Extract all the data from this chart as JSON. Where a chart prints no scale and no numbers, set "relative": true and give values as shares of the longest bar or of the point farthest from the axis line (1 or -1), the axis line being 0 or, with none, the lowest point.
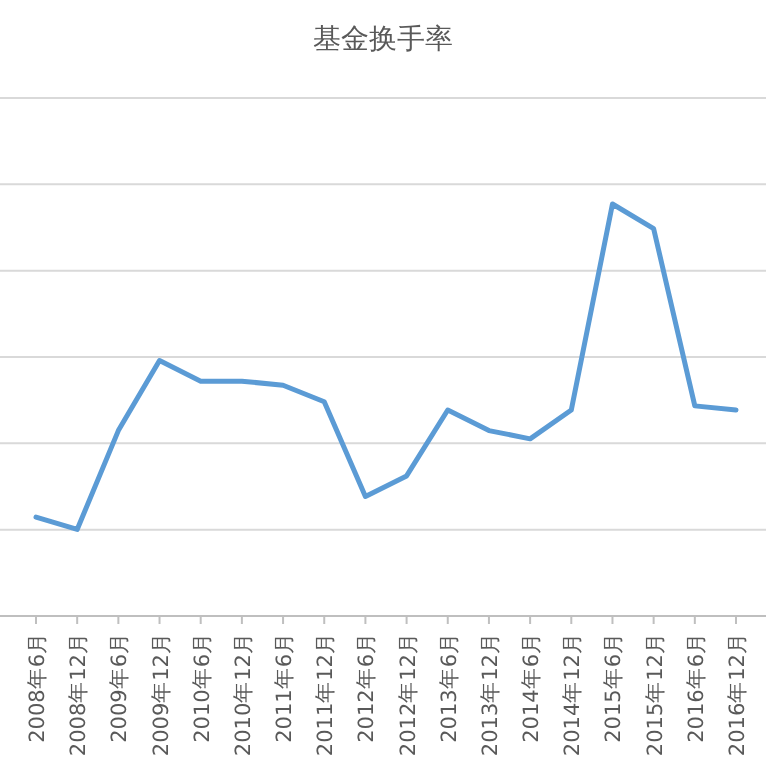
{
  "chart_data": {
    "type": "line",
    "title": "基金换手率",
    "relative": true,
    "grid": "y",
    "marker": "none",
    "line_style": "solid",
    "categories": [
      "2008年6月",
      "2008年12月",
      "2009年6月",
      "2009年12月",
      "2010年6月",
      "2010年12月",
      "2011年6月",
      "2011年12月",
      "2012年6月",
      "2012年12月",
      "2013年6月",
      "2013年12月",
      "2014年6月",
      "2014年12月",
      "2015年6月",
      "2015年12月",
      "2016年6月",
      "2016年12月"
    ],
    "series": [
      {
        "color": "#5b9bd5",
        "values": [
          0.24,
          0.21,
          0.45,
          0.62,
          0.57,
          0.57,
          0.56,
          0.52,
          0.29,
          0.34,
          0.5,
          0.45,
          0.43,
          0.5,
          1,
          0.94,
          0.51,
          0.5
        ]
      }
    ]
  }
}
